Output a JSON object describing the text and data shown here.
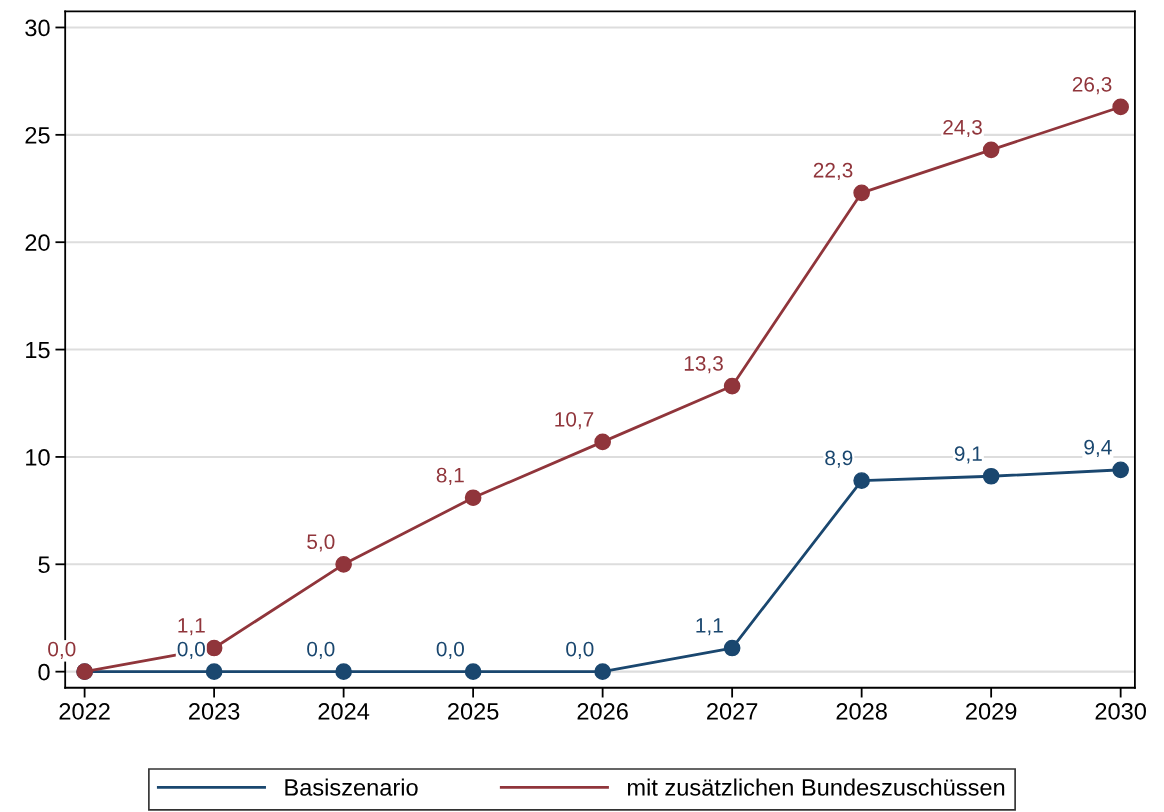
{
  "chart_data": {
    "type": "line",
    "x": [
      2022,
      2023,
      2024,
      2025,
      2026,
      2027,
      2028,
      2029,
      2030
    ],
    "series": [
      {
        "name": "Basiszenario",
        "color": "#1a476f",
        "values": [
          0.0,
          0.0,
          0.0,
          0.0,
          0.0,
          1.1,
          8.9,
          9.1,
          9.4
        ],
        "value_labels": [
          null,
          "0,0",
          "0,0",
          "0,0",
          "0,0",
          "1,1",
          "8,9",
          "9,1",
          "9,4"
        ]
      },
      {
        "name": "mit zusätzlichen Bundeszuschüssen",
        "color": "#90353b",
        "values": [
          0.0,
          1.1,
          5.0,
          8.1,
          10.7,
          13.3,
          22.3,
          24.3,
          26.3
        ],
        "value_labels": [
          "0,0",
          "1,1",
          "5,0",
          "8,1",
          "10,7",
          "13,3",
          "22,3",
          "24,3",
          "26,3"
        ]
      }
    ],
    "xlim": [
      2021.85,
      2030.11
    ],
    "xticks": [
      2022,
      2023,
      2024,
      2025,
      2026,
      2027,
      2028,
      2029,
      2030
    ],
    "ylim": [
      -0.75,
      30.75
    ],
    "yticks": [
      0,
      5,
      10,
      15,
      20,
      25,
      30
    ],
    "grid": "y",
    "legend": "bottom",
    "marker": "circle",
    "line_style": "solid"
  }
}
